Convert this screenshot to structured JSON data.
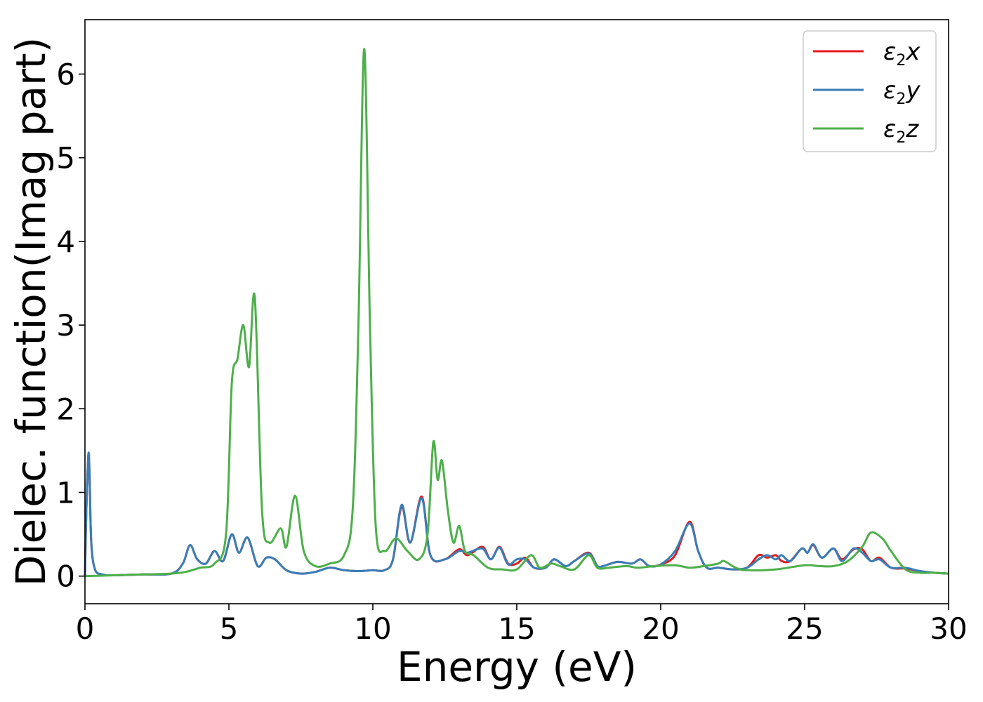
{
  "chart_data": {
    "type": "line",
    "title": "",
    "xlabel": "Energy (eV)",
    "ylabel": "Dielec. function(Imag part)",
    "xlim": [
      0,
      30
    ],
    "ylim": [
      -0.33,
      6.65
    ],
    "xticks": [
      0,
      5,
      10,
      15,
      20,
      25,
      30
    ],
    "xtick_labels": [
      "0",
      "5",
      "10",
      "15",
      "20",
      "25",
      "30"
    ],
    "yticks": [
      0,
      1,
      2,
      3,
      4,
      5,
      6
    ],
    "ytick_labels": [
      "0",
      "1",
      "2",
      "3",
      "4",
      "5",
      "6"
    ],
    "grid": false,
    "legend_position": "top-right",
    "series": [
      {
        "name": "ε2x",
        "sym": "ε",
        "sub": "2",
        "suffix": "x",
        "color": "#e41a1c",
        "x": [
          0,
          0.05,
          0.12,
          0.16,
          0.22,
          0.35,
          0.6,
          1,
          2,
          3,
          3.4,
          3.65,
          3.9,
          4.2,
          4.5,
          4.8,
          5.1,
          5.35,
          5.65,
          6,
          6.3,
          6.6,
          7,
          7.5,
          8,
          8.5,
          9,
          9.5,
          10,
          10.4,
          10.7,
          11,
          11.3,
          11.7,
          12,
          12.5,
          13,
          13.3,
          13.8,
          14.1,
          14.4,
          14.7,
          15,
          15.3,
          15.6,
          16,
          16.3,
          16.7,
          17,
          17.5,
          17.8,
          18,
          18.5,
          19,
          19.3,
          19.6,
          20,
          20.5,
          21,
          21.3,
          21.6,
          22,
          22.5,
          23,
          23.4,
          23.7,
          24,
          24.2,
          24.5,
          24.9,
          25.1,
          25.3,
          25.6,
          26,
          26.3,
          26.7,
          27,
          27.3,
          27.6,
          28,
          28.5,
          29,
          29.5,
          30
        ],
        "y": [
          0,
          0.8,
          1.45,
          1.2,
          0.4,
          0.08,
          0.02,
          0.01,
          0.02,
          0.03,
          0.15,
          0.37,
          0.2,
          0.15,
          0.3,
          0.18,
          0.5,
          0.28,
          0.46,
          0.12,
          0.22,
          0.2,
          0.07,
          0.03,
          0.05,
          0.1,
          0.07,
          0.06,
          0.07,
          0.07,
          0.2,
          0.83,
          0.4,
          0.95,
          0.25,
          0.2,
          0.32,
          0.25,
          0.35,
          0.2,
          0.35,
          0.15,
          0.15,
          0.22,
          0.1,
          0.1,
          0.2,
          0.12,
          0.18,
          0.28,
          0.12,
          0.12,
          0.17,
          0.15,
          0.2,
          0.12,
          0.14,
          0.25,
          0.65,
          0.3,
          0.1,
          0.1,
          0.08,
          0.1,
          0.25,
          0.22,
          0.25,
          0.18,
          0.18,
          0.33,
          0.28,
          0.37,
          0.22,
          0.33,
          0.2,
          0.32,
          0.32,
          0.18,
          0.22,
          0.1,
          0.09,
          0.06,
          0.04,
          0.03
        ]
      },
      {
        "name": "ε2y",
        "sym": "ε",
        "sub": "2",
        "suffix": "y",
        "color": "#377eb8",
        "x": [
          0,
          0.05,
          0.12,
          0.16,
          0.22,
          0.35,
          0.6,
          1,
          2,
          3,
          3.4,
          3.65,
          3.9,
          4.2,
          4.5,
          4.8,
          5.1,
          5.35,
          5.65,
          6,
          6.3,
          6.6,
          7,
          7.5,
          8,
          8.5,
          9,
          9.5,
          10,
          10.4,
          10.7,
          11,
          11.3,
          11.7,
          12,
          12.5,
          13,
          13.3,
          13.8,
          14.1,
          14.4,
          14.7,
          15,
          15.3,
          15.6,
          16,
          16.3,
          16.7,
          17,
          17.5,
          17.8,
          18,
          18.5,
          19,
          19.3,
          19.6,
          20,
          20.5,
          21,
          21.3,
          21.6,
          22,
          22.5,
          23,
          23.4,
          23.7,
          24,
          24.2,
          24.5,
          24.9,
          25.1,
          25.3,
          25.6,
          26,
          26.3,
          26.7,
          27,
          27.3,
          27.6,
          28,
          28.5,
          29,
          29.5,
          30
        ],
        "y": [
          0,
          0.8,
          1.46,
          1.2,
          0.4,
          0.08,
          0.02,
          0.01,
          0.02,
          0.03,
          0.15,
          0.37,
          0.2,
          0.15,
          0.3,
          0.18,
          0.5,
          0.28,
          0.46,
          0.12,
          0.22,
          0.2,
          0.07,
          0.03,
          0.05,
          0.1,
          0.07,
          0.06,
          0.07,
          0.07,
          0.2,
          0.85,
          0.4,
          0.93,
          0.25,
          0.2,
          0.3,
          0.28,
          0.33,
          0.2,
          0.34,
          0.14,
          0.2,
          0.2,
          0.1,
          0.1,
          0.2,
          0.12,
          0.18,
          0.27,
          0.12,
          0.12,
          0.17,
          0.15,
          0.2,
          0.12,
          0.14,
          0.3,
          0.63,
          0.3,
          0.1,
          0.1,
          0.08,
          0.1,
          0.2,
          0.25,
          0.2,
          0.25,
          0.18,
          0.33,
          0.28,
          0.38,
          0.22,
          0.33,
          0.18,
          0.33,
          0.28,
          0.18,
          0.2,
          0.1,
          0.1,
          0.06,
          0.04,
          0.03
        ]
      },
      {
        "name": "ε2z",
        "sym": "ε",
        "sub": "2",
        "suffix": "z",
        "color": "#4daf4a",
        "x": [
          0,
          1,
          2,
          3,
          3.5,
          4,
          4.5,
          4.9,
          5.1,
          5.3,
          5.5,
          5.7,
          5.9,
          6.15,
          6.4,
          6.8,
          7,
          7.3,
          7.6,
          8,
          8.5,
          9,
          9.3,
          9.5,
          9.7,
          9.9,
          10.1,
          10.4,
          10.8,
          11.2,
          11.6,
          11.9,
          12.1,
          12.25,
          12.4,
          12.6,
          12.8,
          13,
          13.2,
          13.5,
          14,
          14.5,
          15,
          15.5,
          15.8,
          16.2,
          16.5,
          17,
          17.5,
          17.8,
          18.2,
          18.8,
          19.2,
          19.8,
          20.5,
          21,
          21.5,
          22,
          22.2,
          22.6,
          23,
          24,
          25,
          25.5,
          26,
          26.5,
          27,
          27.3,
          27.7,
          28,
          28.5,
          29,
          29.5,
          30
        ],
        "y": [
          0,
          0.01,
          0.02,
          0.03,
          0.05,
          0.1,
          0.15,
          0.5,
          2.3,
          2.6,
          3.0,
          2.5,
          3.33,
          0.8,
          0.4,
          0.57,
          0.35,
          0.96,
          0.3,
          0.12,
          0.15,
          0.25,
          0.8,
          3.0,
          6.3,
          3.0,
          0.6,
          0.3,
          0.45,
          0.3,
          0.2,
          0.5,
          1.6,
          1.15,
          1.38,
          0.8,
          0.4,
          0.6,
          0.3,
          0.25,
          0.1,
          0.08,
          0.08,
          0.25,
          0.1,
          0.15,
          0.12,
          0.08,
          0.25,
          0.1,
          0.1,
          0.12,
          0.1,
          0.12,
          0.13,
          0.1,
          0.12,
          0.15,
          0.18,
          0.1,
          0.07,
          0.08,
          0.13,
          0.12,
          0.12,
          0.18,
          0.35,
          0.52,
          0.45,
          0.3,
          0.08,
          0.04,
          0.04,
          0.03
        ]
      }
    ]
  }
}
